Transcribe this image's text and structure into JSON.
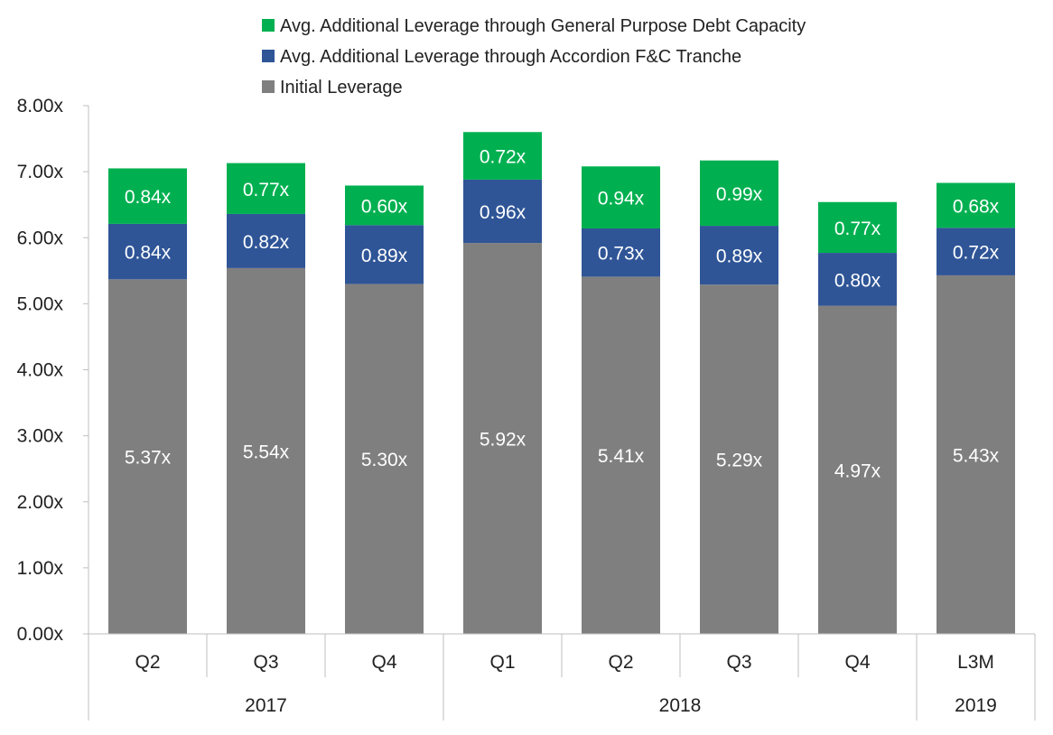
{
  "chart_data": {
    "type": "bar",
    "stacked": true,
    "categories": [
      "Q2",
      "Q3",
      "Q4",
      "Q1",
      "Q2",
      "Q3",
      "Q4",
      "L3M"
    ],
    "groups": [
      {
        "label": "2017",
        "count": 3
      },
      {
        "label": "2018",
        "count": 4
      },
      {
        "label": "2019",
        "count": 1
      }
    ],
    "series": [
      {
        "name": "Initial Leverage",
        "color": "#7f7f7f",
        "values": [
          5.37,
          5.54,
          5.3,
          5.92,
          5.41,
          5.29,
          4.97,
          5.43
        ],
        "labels": [
          "5.37x",
          "5.54x",
          "5.30x",
          "5.92x",
          "5.41x",
          "5.29x",
          "4.97x",
          "5.43x"
        ]
      },
      {
        "name": "Avg. Additional Leverage through Accordion F&C Tranche",
        "color": "#2f5597",
        "values": [
          0.84,
          0.82,
          0.89,
          0.96,
          0.73,
          0.89,
          0.8,
          0.72
        ],
        "labels": [
          "0.84x",
          "0.82x",
          "0.89x",
          "0.96x",
          "0.73x",
          "0.89x",
          "0.80x",
          "0.72x"
        ]
      },
      {
        "name": "Avg. Additional Leverage through General Purpose Debt Capacity",
        "color": "#00b050",
        "values": [
          0.84,
          0.77,
          0.6,
          0.72,
          0.94,
          0.99,
          0.77,
          0.68
        ],
        "labels": [
          "0.84x",
          "0.77x",
          "0.60x",
          "0.72x",
          "0.94x",
          "0.99x",
          "0.77x",
          "0.68x"
        ]
      }
    ],
    "legend_order": [
      "Avg. Additional Leverage through General Purpose Debt Capacity",
      "Avg. Additional Leverage through Accordion F&C Tranche",
      "Initial Leverage"
    ],
    "legend_position": "top",
    "ylim": [
      0,
      8
    ],
    "yticks": [
      "0.00x",
      "1.00x",
      "2.00x",
      "3.00x",
      "4.00x",
      "5.00x",
      "6.00x",
      "7.00x",
      "8.00x"
    ],
    "grid": false,
    "xlabel": "",
    "ylabel": "",
    "title": ""
  }
}
